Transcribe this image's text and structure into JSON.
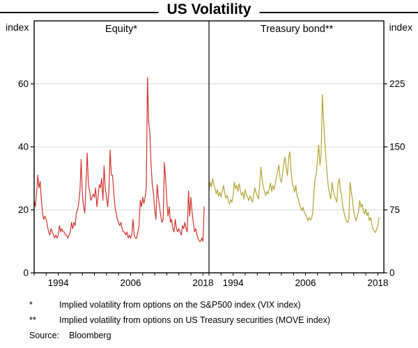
{
  "title": "US Volatility",
  "axis_units": {
    "left": "index",
    "right": "index"
  },
  "footnotes": [
    {
      "marker": "*",
      "text": "Implied volatility from options on the S&P500 index (VIX index)"
    },
    {
      "marker": "**",
      "text": "Implied volatility from options on US Treasury securities (MOVE index)"
    }
  ],
  "source": {
    "label": "Source:",
    "text": "Bloomberg"
  },
  "chart_data": {
    "type": "line",
    "grid": true,
    "gridcolor": "#d9d9d9",
    "frame_color": "#000000",
    "panels": [
      {
        "label": "Equity*",
        "side": "left",
        "ylabel": "index",
        "ylim": [
          0,
          80
        ],
        "yticks": [
          0,
          20,
          40,
          60
        ],
        "xlim": [
          1990,
          2019
        ],
        "xticks": [
          1994,
          2006,
          2018
        ],
        "xminor_step": 2,
        "series": [
          {
            "name": "VIX",
            "color": "#d0342c",
            "x_start": 1990.0,
            "x_step": 0.2,
            "values": [
              23,
              21,
              25,
              31,
              27,
              29,
              23,
              19,
              17,
              18,
              17,
              15,
              13,
              12,
              14,
              13,
              12,
              11,
              12,
              11,
              12,
              15,
              13,
              14,
              13,
              13,
              12,
              12,
              11,
              12,
              13,
              16,
              14,
              16,
              15,
              19,
              20,
              22,
              26,
              36,
              25,
              21,
              19,
              28,
              38,
              28,
              26,
              23,
              24,
              25,
              24,
              27,
              21,
              24,
              28,
              27,
              30,
              23,
              34,
              27,
              24,
              21,
              26,
              39,
              31,
              31,
              26,
              21,
              19,
              17,
              16,
              15,
              16,
              14,
              13,
              13,
              12,
              13,
              11,
              12,
              11,
              12,
              17,
              12,
              11,
              11,
              13,
              15,
              23,
              21,
              24,
              22,
              24,
              27,
              62,
              48,
              44,
              34,
              28,
              25,
              20,
              17,
              28,
              24,
              21,
              18,
              16,
              17,
              35,
              30,
              23,
              18,
              21,
              16,
              17,
              14,
              13,
              17,
              14,
              13,
              14,
              13,
              12,
              15,
              14,
              16,
              14,
              13,
              26,
              18,
              24,
              19,
              16,
              13,
              14,
              12,
              11,
              10,
              10,
              11,
              10,
              21
            ]
          }
        ]
      },
      {
        "label": "Treasury bond**",
        "side": "right",
        "ylabel": "index",
        "ylim": [
          0,
          300
        ],
        "yticks": [
          0,
          75,
          150,
          225
        ],
        "xlim": [
          1990,
          2019
        ],
        "xticks": [
          1994,
          2006,
          2018
        ],
        "xminor_step": 2,
        "series": [
          {
            "name": "MOVE",
            "color": "#b3a233",
            "x_start": 1990.0,
            "x_step": 0.2,
            "values": [
              98,
              108,
              102,
              112,
              105,
              100,
              94,
              99,
              91,
              96,
              90,
              97,
              104,
              95,
              89,
              92,
              86,
              82,
              87,
              84,
              92,
              108,
              100,
              104,
              97,
              106,
              98,
              92,
              96,
              88,
              99,
              93,
              90,
              86,
              92,
              88,
              84,
              92,
              101,
              96,
              92,
              88,
              104,
              126,
              112,
              103,
              97,
              92,
              97,
              94,
              101,
              107,
              97,
              104,
              99,
              106,
              114,
              122,
              128,
              112,
              108,
              118,
              130,
              138,
              124,
              116,
              136,
              144,
              122,
              108,
              102,
              96,
              104,
              92,
              88,
              82,
              78,
              74,
              78,
              72,
              70,
              66,
              62,
              66,
              63,
              64,
              72,
              96,
              112,
              118,
              136,
              152,
              128,
              142,
              212,
              182,
              158,
              136,
              118,
              102,
              94,
              88,
              108,
              98,
              92,
              88,
              84,
              106,
              112,
              98,
              92,
              78,
              72,
              66,
              62,
              60,
              64,
              108,
              96,
              86,
              74,
              66,
              62,
              68,
              72,
              86,
              78,
              82,
              74,
              70,
              76,
              68,
              72,
              62,
              66,
              58,
              52,
              50,
              48,
              52,
              56,
              66
            ]
          }
        ]
      }
    ]
  }
}
